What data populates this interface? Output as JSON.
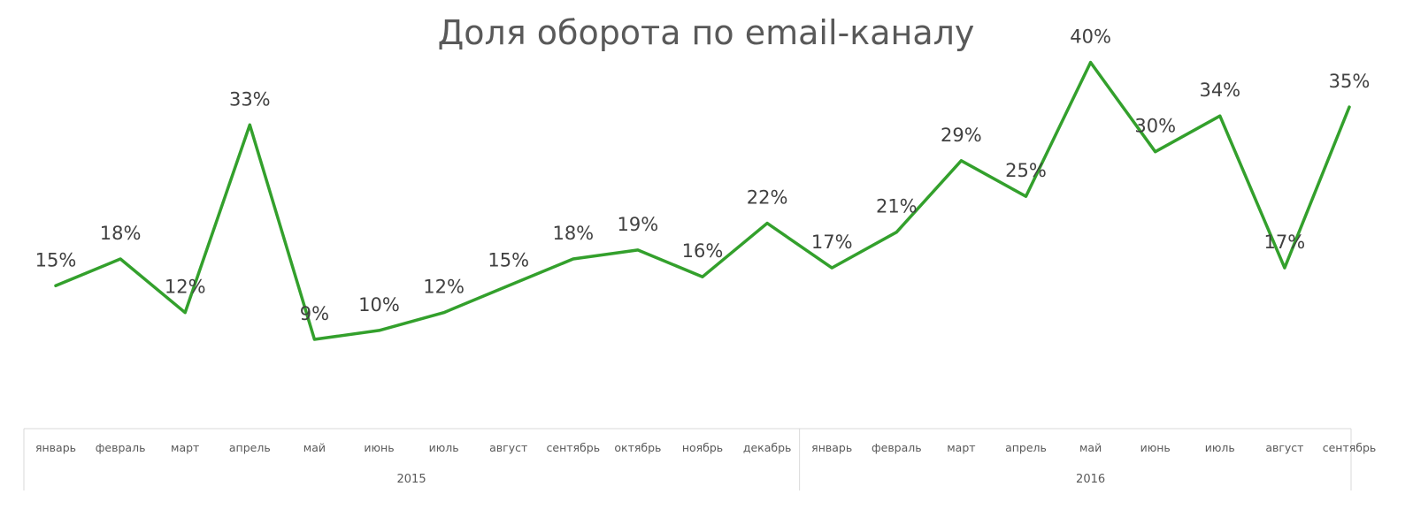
{
  "chart_data": {
    "type": "line",
    "title": "Доля оборота по email-каналу",
    "x": [
      "январь",
      "февраль",
      "март",
      "апрель",
      "май",
      "июнь",
      "июль",
      "август",
      "сентябрь",
      "октябрь",
      "ноябрь",
      "декабрь",
      "январь",
      "февраль",
      "март",
      "апрель",
      "май",
      "июнь",
      "июль",
      "август",
      "сентябрь"
    ],
    "groups": [
      {
        "label": "2015",
        "count": 12
      },
      {
        "label": "2016",
        "count": 9
      }
    ],
    "series": [
      {
        "values": [
          15,
          18,
          12,
          33,
          9,
          10,
          12,
          15,
          18,
          19,
          16,
          22,
          17,
          21,
          29,
          25,
          40,
          30,
          34,
          17,
          35
        ],
        "labels": [
          "15%",
          "18%",
          "12%",
          "33%",
          "9%",
          "10%",
          "12%",
          "15%",
          "18%",
          "19%",
          "16%",
          "22%",
          "17%",
          "21%",
          "29%",
          "25%",
          "40%",
          "30%",
          "34%",
          "17%",
          "35%"
        ]
      }
    ],
    "ylim": [
      0,
      45
    ],
    "xlabel": "",
    "ylabel": "",
    "grid": false,
    "legend": "none",
    "color": "#33a02c"
  }
}
